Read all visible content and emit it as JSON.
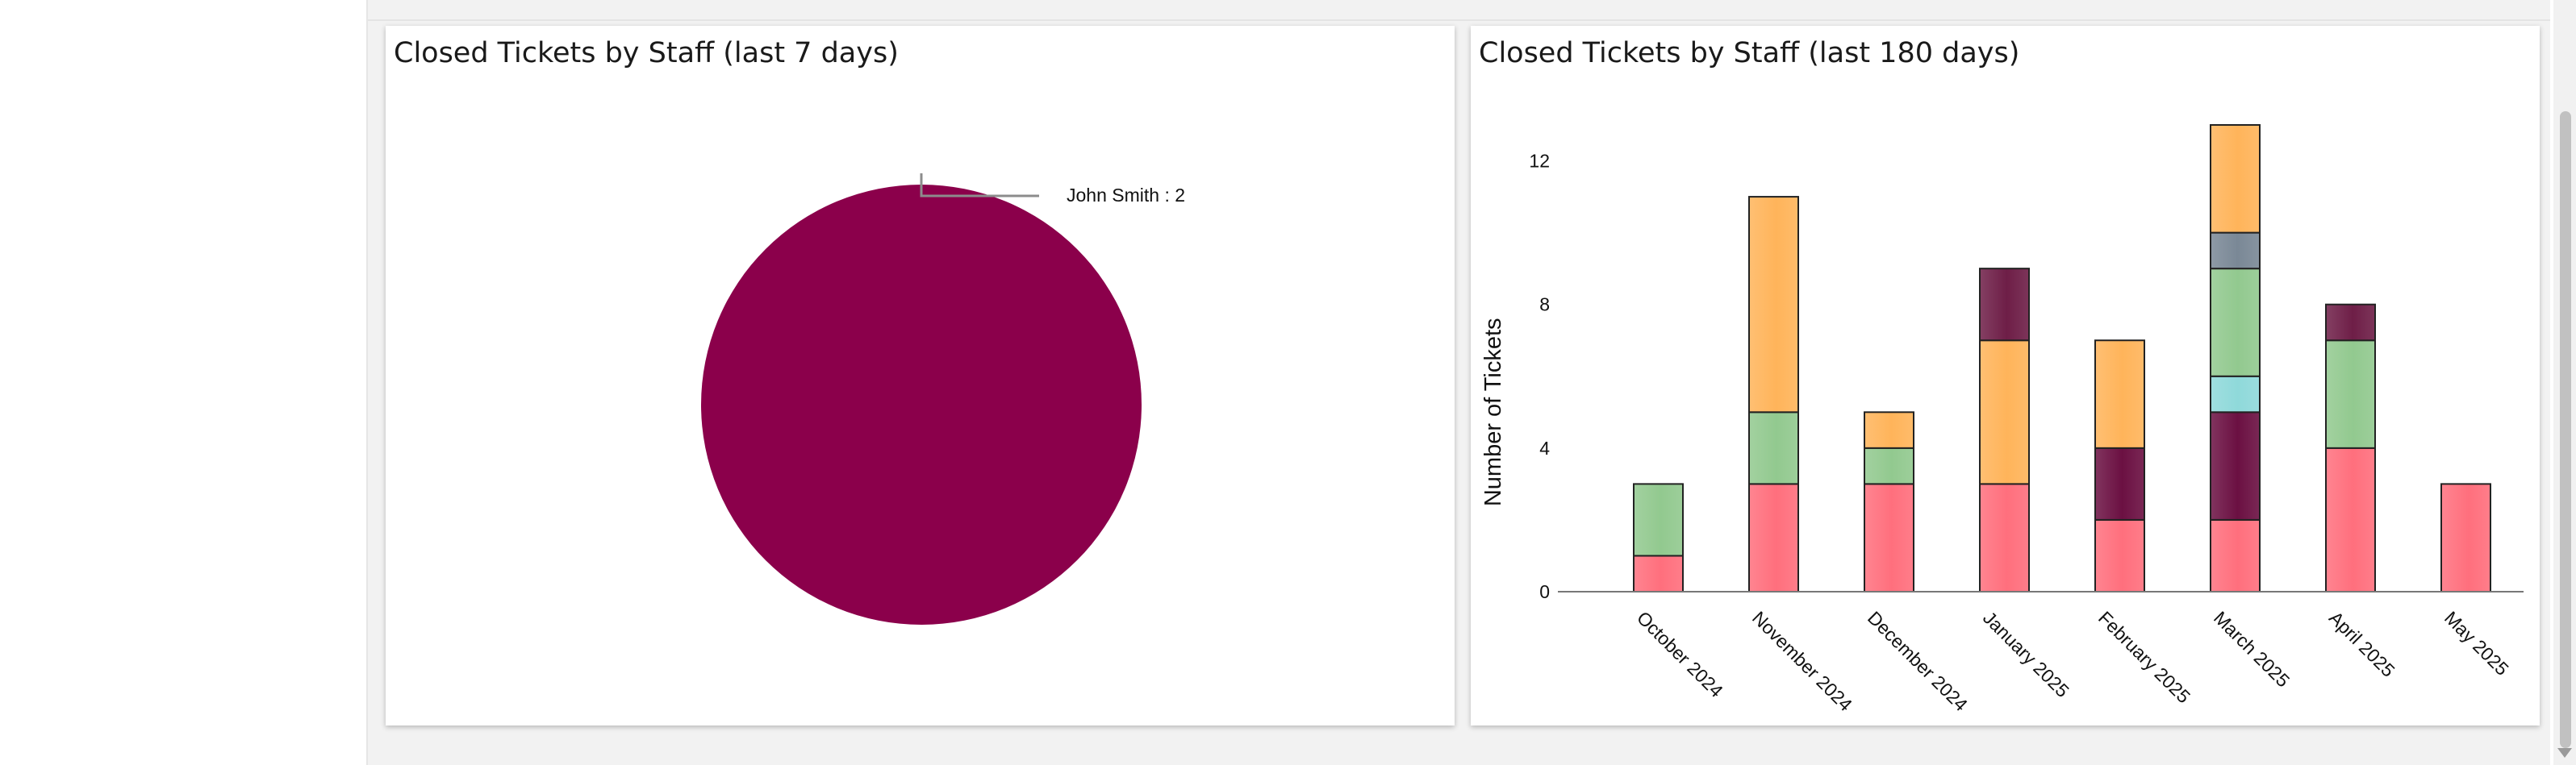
{
  "panels": {
    "left": {
      "title": "Closed Tickets by Staff (last 7 days)"
    },
    "right": {
      "title": "Closed Tickets by Staff (last 180 days)"
    }
  },
  "chart_data": [
    {
      "type": "pie",
      "title": "Closed Tickets by Staff (last 7 days)",
      "slices": [
        {
          "label": "John Smith : 2",
          "value": 2,
          "color": "#8b004b"
        }
      ]
    },
    {
      "type": "bar",
      "stacked": true,
      "title": "Closed Tickets by Staff (last 180 days)",
      "xlabel": "",
      "ylabel": "Number of Tickets",
      "ylim": [
        0,
        13
      ],
      "yticks": [
        0,
        4,
        8,
        12
      ],
      "grid": false,
      "categories": [
        "October 2024",
        "November 2024",
        "December 2024",
        "January 2025",
        "February 2025",
        "March 2025",
        "April 2025",
        "May 2025"
      ],
      "series": [
        {
          "color": "#ff6f7d",
          "values": [
            1,
            3,
            3,
            3,
            2,
            2,
            4,
            3
          ]
        },
        {
          "color": "#6b1042",
          "values": [
            0,
            0,
            0,
            0,
            2,
            3,
            0,
            0
          ]
        },
        {
          "color": "#8fd9da",
          "values": [
            0,
            0,
            0,
            0,
            0,
            1,
            0,
            0
          ]
        },
        {
          "color": "#92c98f",
          "values": [
            2,
            2,
            1,
            0,
            0,
            3,
            3,
            0
          ]
        },
        {
          "color": "#7a8896",
          "values": [
            0,
            0,
            0,
            0,
            0,
            1,
            0,
            0
          ]
        },
        {
          "color": "#ffb45a",
          "values": [
            0,
            6,
            1,
            4,
            3,
            3,
            0,
            0
          ]
        },
        {
          "color": "#6e1e47",
          "values": [
            0,
            0,
            0,
            2,
            0,
            0,
            1,
            0
          ]
        }
      ]
    }
  ]
}
